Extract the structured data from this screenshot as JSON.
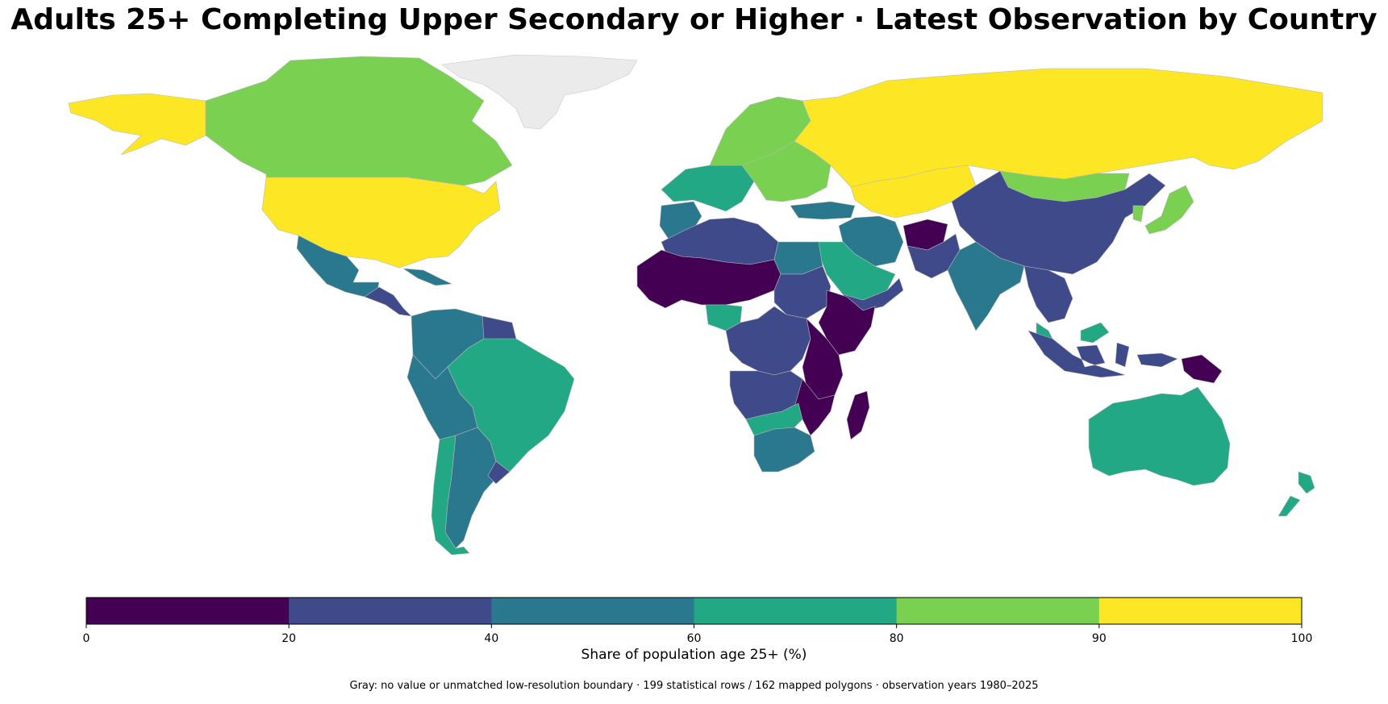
{
  "title": "Adults 25+ Completing Upper Secondary or Higher · Latest Observation by Country",
  "legend": {
    "title": "Share of population age 25+ (%)",
    "bins": [
      {
        "from": 0,
        "to": 20,
        "color": "#440154"
      },
      {
        "from": 20,
        "to": 40,
        "color": "#3e4a89"
      },
      {
        "from": 40,
        "to": 60,
        "color": "#2a788e"
      },
      {
        "from": 60,
        "to": 80,
        "color": "#22a884"
      },
      {
        "from": 80,
        "to": 90,
        "color": "#7ad151"
      },
      {
        "from": 90,
        "to": 100,
        "color": "#fde725"
      }
    ],
    "ticks": [
      "0",
      "20",
      "40",
      "60",
      "80",
      "90",
      "100"
    ],
    "no_data_color": "#ebebeb"
  },
  "footnote": "Gray: no value or unmatched low-resolution boundary · 199 statistical rows / 162 mapped polygons · observation years 1980–2025",
  "regions": [
    {
      "name": "Alaska",
      "bin": 5
    },
    {
      "name": "Canada",
      "bin": 4
    },
    {
      "name": "United States",
      "bin": 5
    },
    {
      "name": "Greenland",
      "bin": null
    },
    {
      "name": "Mexico",
      "bin": 2
    },
    {
      "name": "Central America",
      "bin": 1
    },
    {
      "name": "Caribbean",
      "bin": 2
    },
    {
      "name": "Colombia / Venezuela",
      "bin": 2
    },
    {
      "name": "Guyanas",
      "bin": 1
    },
    {
      "name": "Brazil",
      "bin": 3
    },
    {
      "name": "Peru / Bolivia",
      "bin": 2
    },
    {
      "name": "Argentina",
      "bin": 2
    },
    {
      "name": "Chile",
      "bin": 3
    },
    {
      "name": "Uruguay",
      "bin": 1
    },
    {
      "name": "Western Europe",
      "bin": 3
    },
    {
      "name": "Scandinavia",
      "bin": 4
    },
    {
      "name": "Eastern Europe",
      "bin": 4
    },
    {
      "name": "Iberia",
      "bin": 2
    },
    {
      "name": "Russia",
      "bin": 5
    },
    {
      "name": "Kazakhstan",
      "bin": 5
    },
    {
      "name": "Mongolia",
      "bin": 4
    },
    {
      "name": "China",
      "bin": 1
    },
    {
      "name": "Japan",
      "bin": 4
    },
    {
      "name": "Korea",
      "bin": 4
    },
    {
      "name": "Turkey",
      "bin": 2
    },
    {
      "name": "Iran",
      "bin": 2
    },
    {
      "name": "Afghanistan",
      "bin": 0
    },
    {
      "name": "Pakistan",
      "bin": 1
    },
    {
      "name": "India",
      "bin": 2
    },
    {
      "name": "Saudi Arabia",
      "bin": 3
    },
    {
      "name": "Yemen / Oman",
      "bin": 1
    },
    {
      "name": "Southeast Asia",
      "bin": 1
    },
    {
      "name": "Malaysia",
      "bin": 3
    },
    {
      "name": "Indonesia",
      "bin": 1
    },
    {
      "name": "Papua New Guinea",
      "bin": 0
    },
    {
      "name": "Australia",
      "bin": 3
    },
    {
      "name": "New Zealand",
      "bin": 3
    },
    {
      "name": "North Africa",
      "bin": 1
    },
    {
      "name": "Sahel",
      "bin": 0
    },
    {
      "name": "Egypt",
      "bin": 2
    },
    {
      "name": "Sudan",
      "bin": 1
    },
    {
      "name": "Ethiopia / Somalia",
      "bin": 0
    },
    {
      "name": "Nigeria",
      "bin": 3
    },
    {
      "name": "Central Africa",
      "bin": 1
    },
    {
      "name": "East Africa",
      "bin": 0
    },
    {
      "name": "Angola / Zambia",
      "bin": 1
    },
    {
      "name": "Mozambique",
      "bin": 0
    },
    {
      "name": "Madagascar",
      "bin": 0
    },
    {
      "name": "South Africa",
      "bin": 2
    },
    {
      "name": "Botswana / Namibia",
      "bin": 3
    }
  ]
}
